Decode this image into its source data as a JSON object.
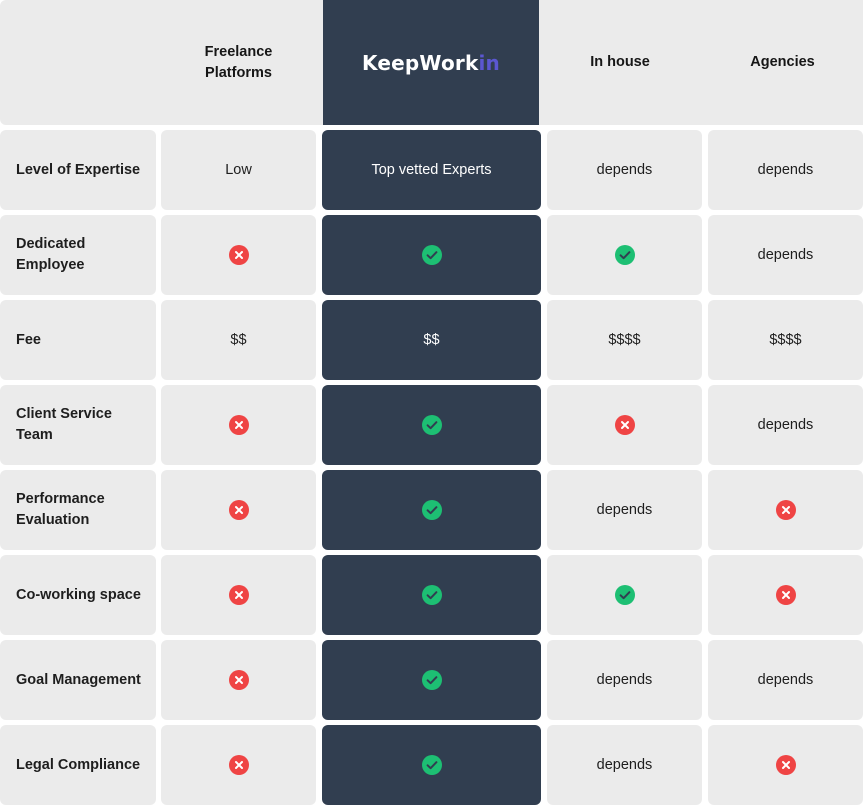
{
  "brand": {
    "logo_main": "KeepWork",
    "logo_accent": "in"
  },
  "columns": [
    "Freelance Platforms",
    "KeepWorkin",
    "In house",
    "Agencies"
  ],
  "column_headers": {
    "freelance_line1": "Freelance",
    "freelance_line2": "Platforms",
    "in_house": "In house",
    "agencies": "Agencies"
  },
  "colors": {
    "dark": "#313e50",
    "cell": "#ebebeb",
    "check": "#1dbf73",
    "cross": "#ef4444",
    "accent": "#5b57d1"
  },
  "rows": [
    {
      "label": "Level of Expertise",
      "cells": [
        {
          "kind": "text",
          "text": "Low"
        },
        {
          "kind": "text",
          "text": "Top vetted Experts"
        },
        {
          "kind": "text",
          "text": "depends"
        },
        {
          "kind": "text",
          "text": "depends"
        }
      ]
    },
    {
      "label": "Dedicated Employee",
      "cells": [
        {
          "kind": "cross"
        },
        {
          "kind": "check"
        },
        {
          "kind": "check"
        },
        {
          "kind": "text",
          "text": "depends"
        }
      ]
    },
    {
      "label": "Fee",
      "cells": [
        {
          "kind": "text",
          "text": "$$"
        },
        {
          "kind": "text",
          "text": "$$"
        },
        {
          "kind": "text",
          "text": "$$$$"
        },
        {
          "kind": "text",
          "text": "$$$$"
        }
      ]
    },
    {
      "label": "Client Service Team",
      "cells": [
        {
          "kind": "cross"
        },
        {
          "kind": "check"
        },
        {
          "kind": "cross"
        },
        {
          "kind": "text",
          "text": "depends"
        }
      ]
    },
    {
      "label": "Performance Evaluation",
      "cells": [
        {
          "kind": "cross"
        },
        {
          "kind": "check"
        },
        {
          "kind": "text",
          "text": "depends"
        },
        {
          "kind": "cross"
        }
      ]
    },
    {
      "label": "Co-working space",
      "cells": [
        {
          "kind": "cross"
        },
        {
          "kind": "check"
        },
        {
          "kind": "check"
        },
        {
          "kind": "cross"
        }
      ]
    },
    {
      "label": "Goal Management",
      "cells": [
        {
          "kind": "cross"
        },
        {
          "kind": "check"
        },
        {
          "kind": "text",
          "text": "depends"
        },
        {
          "kind": "text",
          "text": "depends"
        }
      ]
    },
    {
      "label": "Legal Compliance",
      "cells": [
        {
          "kind": "cross"
        },
        {
          "kind": "check"
        },
        {
          "kind": "text",
          "text": "depends"
        },
        {
          "kind": "cross"
        }
      ]
    }
  ]
}
